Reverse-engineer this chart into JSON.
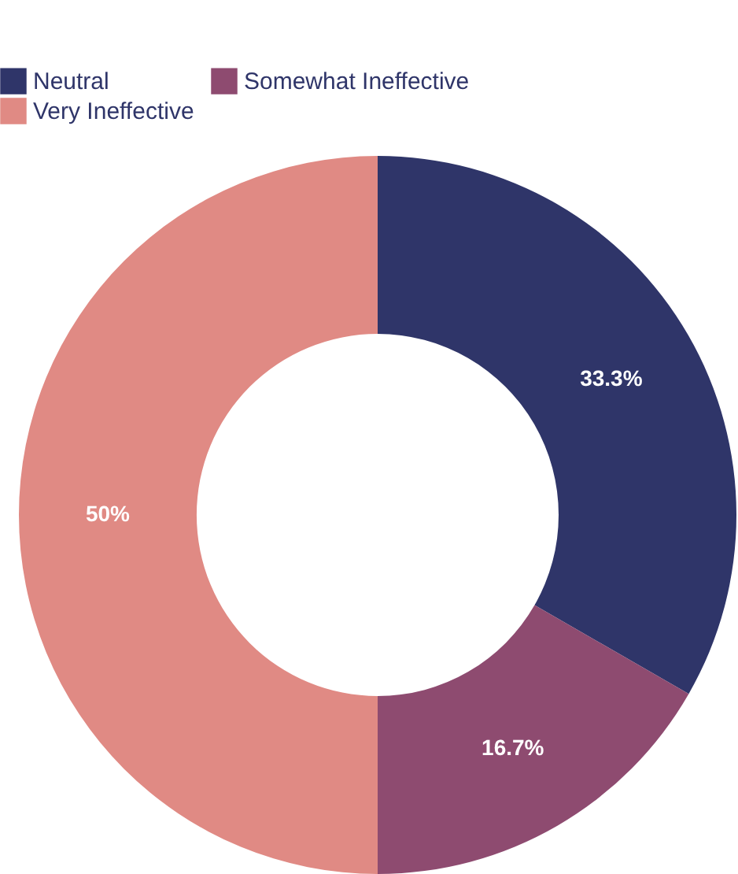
{
  "chart_data": {
    "type": "donut",
    "categories": [
      "Neutral",
      "Somewhat Ineffective",
      "Very Ineffective"
    ],
    "values": [
      33.3,
      16.7,
      50
    ],
    "colors": [
      "#2f3569",
      "#8e4b70",
      "#e08a84"
    ],
    "value_labels": [
      "33.3%",
      "16.7%",
      "50%"
    ],
    "legend": "top"
  }
}
